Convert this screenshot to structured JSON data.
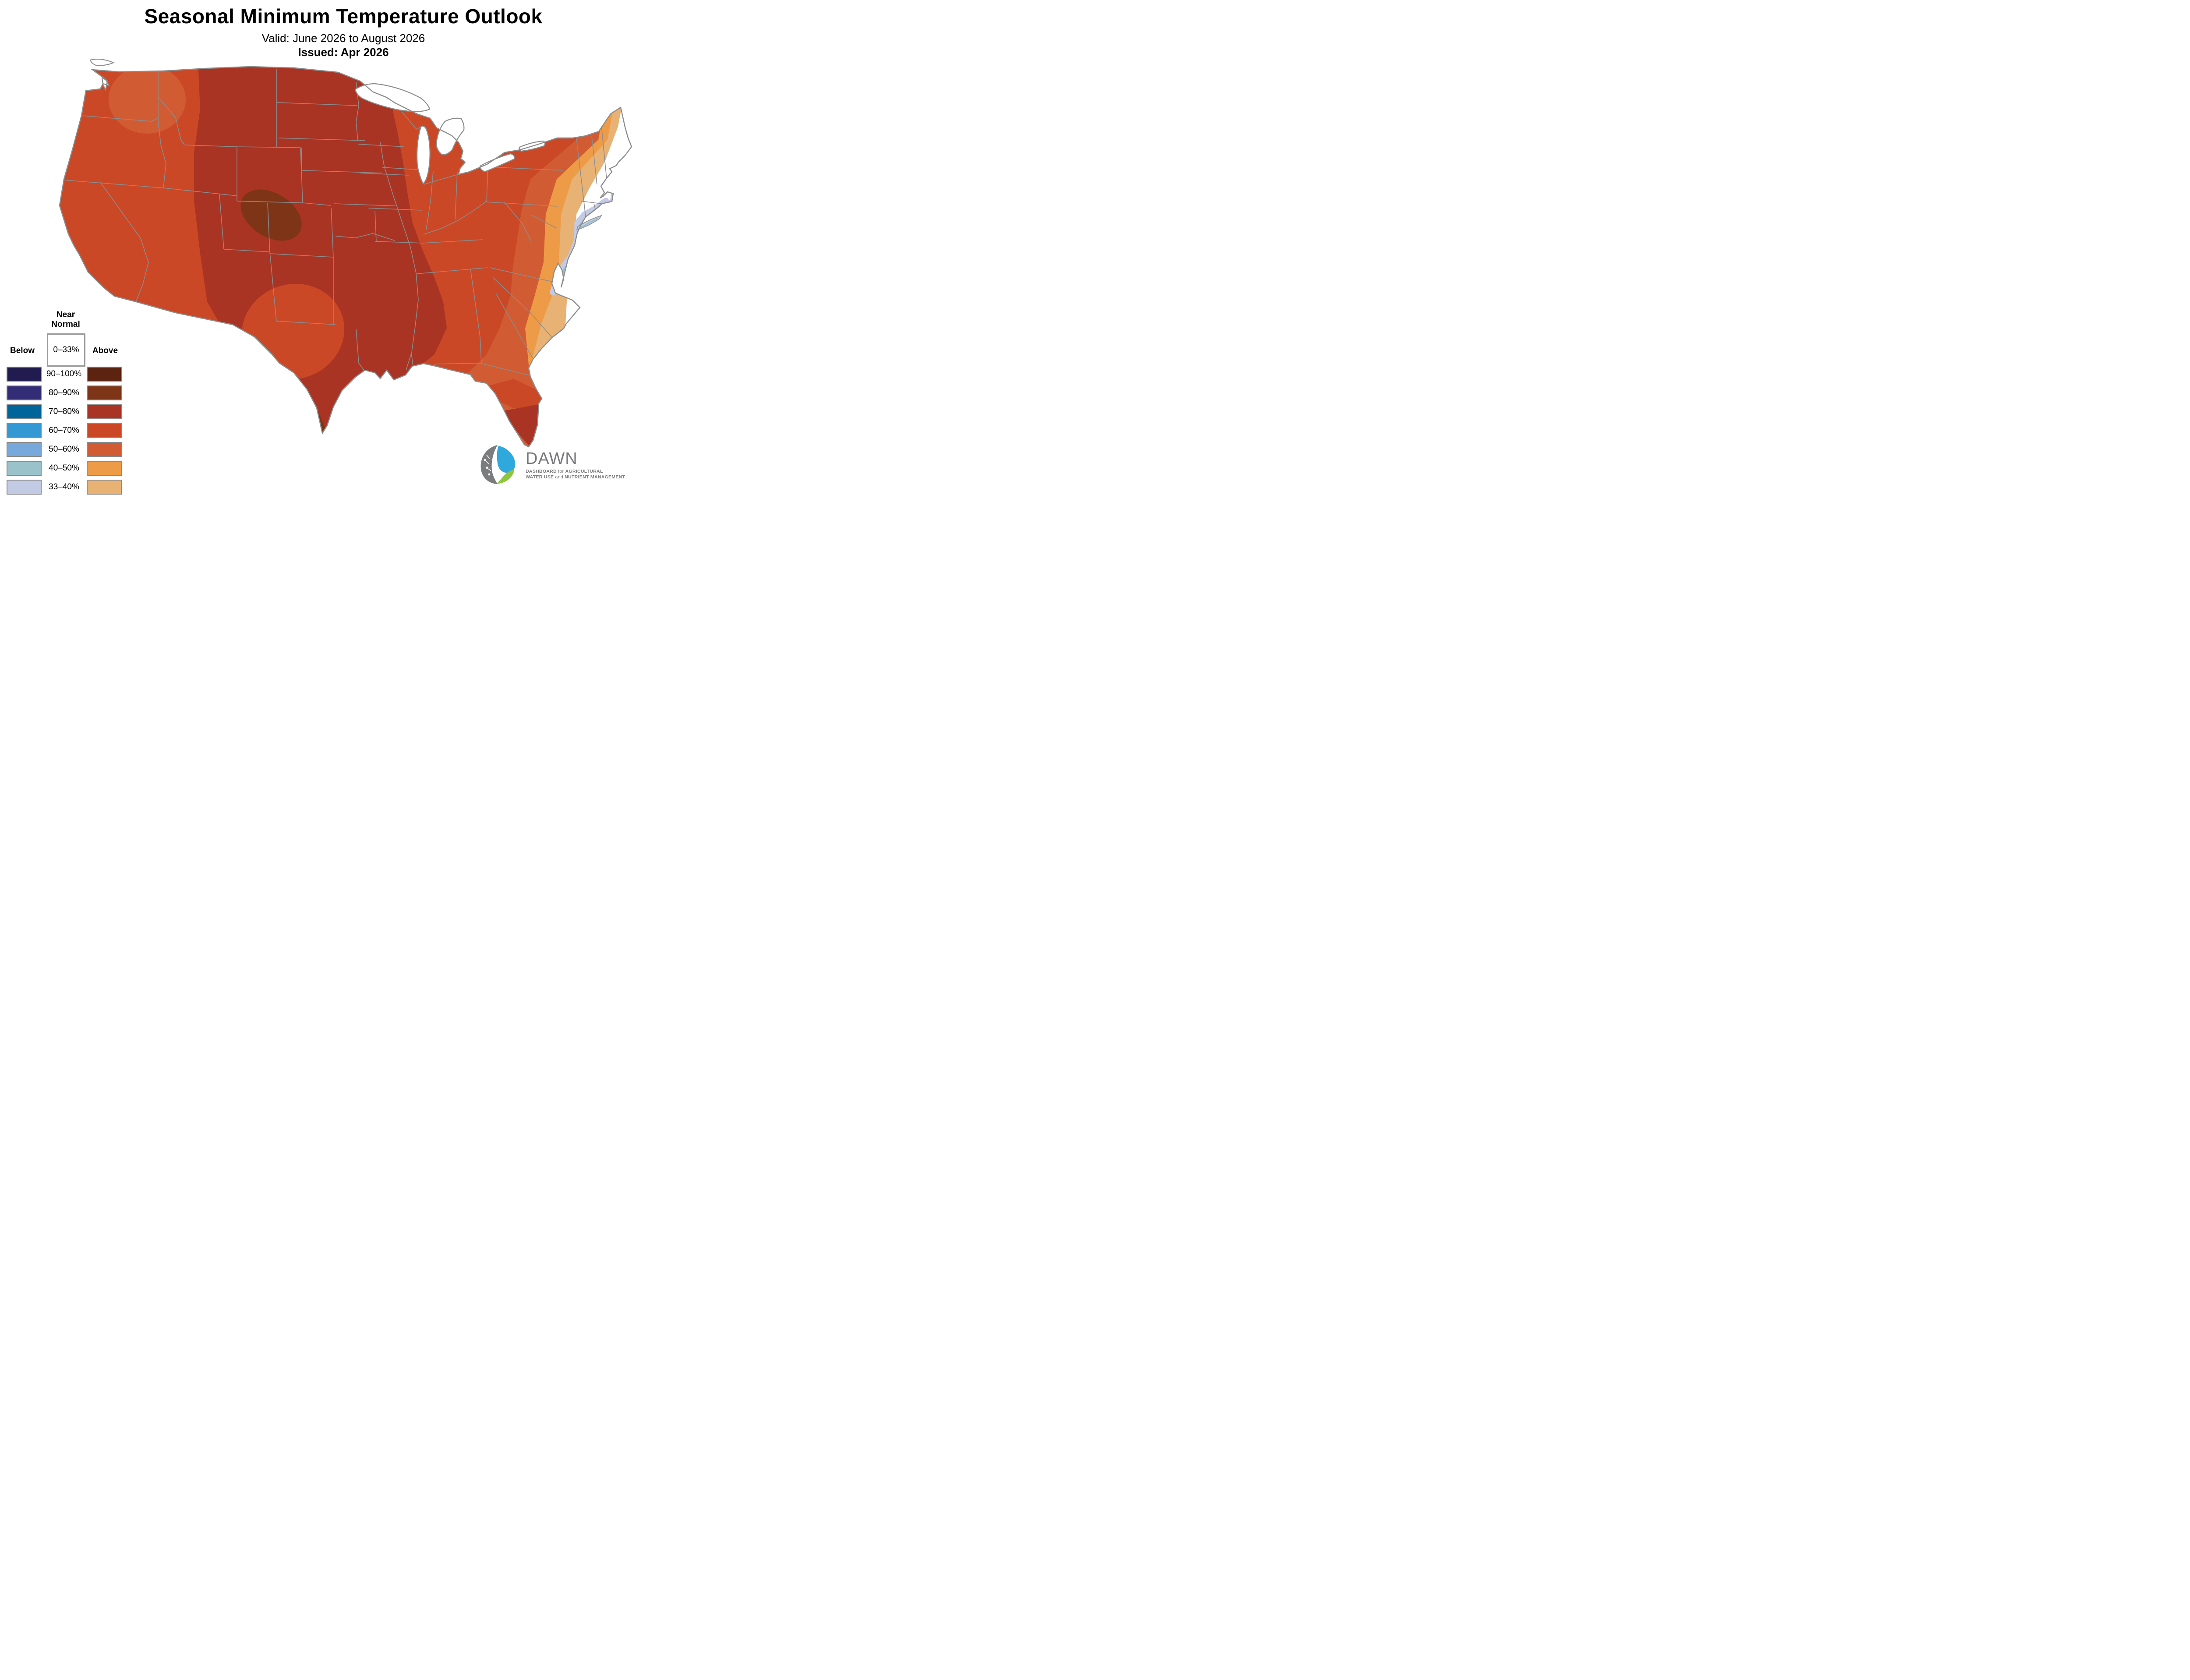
{
  "header": {
    "title": "Seasonal Minimum Temperature Outlook",
    "valid": "Valid: June 2026 to August 2026",
    "issued": "Issued: Apr 2026"
  },
  "legend": {
    "near_normal_label_line1": "Near",
    "near_normal_label_line2": "Normal",
    "near_normal_range": "0–33%",
    "below_label": "Below",
    "above_label": "Above",
    "rows": [
      {
        "range": "90–100%",
        "below_color": "#211B50",
        "above_color": "#5B2310"
      },
      {
        "range": "80–90%",
        "below_color": "#332D77",
        "above_color": "#7E3517"
      },
      {
        "range": "70–80%",
        "below_color": "#00659B",
        "above_color": "#AA3423"
      },
      {
        "range": "60–70%",
        "below_color": "#3498D3",
        "above_color": "#CB4827"
      },
      {
        "range": "50–60%",
        "below_color": "#77A8DC",
        "above_color": "#D15C34"
      },
      {
        "range": "40–50%",
        "below_color": "#99C2CB",
        "above_color": "#EE9B47"
      },
      {
        "range": "33–40%",
        "below_color": "#C3CAE4",
        "above_color": "#E8B275"
      }
    ],
    "near_normal_color": "#FFFFFF"
  },
  "map": {
    "border_color": "#8C8C8C",
    "water_color": "#FFFFFF",
    "dominant_category": "Above normal (33–100%) over nearly all of the contiguous U.S.",
    "near_normal_areas": "White (0–33%) band along the Atlantic coastal plain from Maine to northeast Florida",
    "below_normal_areas": "Below-normal 33–50% slivers along the immediate coast: Cape Cod, Long Island, New Jersey shore, Delmarva"
  },
  "logo": {
    "name": "DAWN",
    "line1_parts": [
      "DASHBOARD",
      " for ",
      "AGRICULTURAL"
    ],
    "line2_parts": [
      "WATER USE",
      " and ",
      "NUTRIENT MANAGEMENT"
    ],
    "gray": "#77787B",
    "blue": "#2FA9DC",
    "green": "#8DC63F"
  }
}
